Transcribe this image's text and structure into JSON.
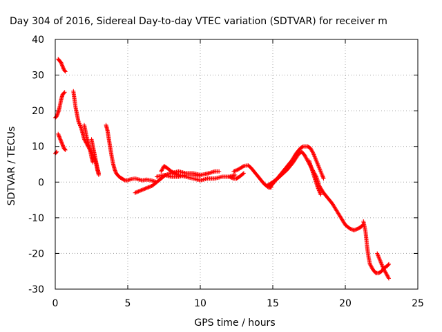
{
  "chart_data": {
    "type": "scatter",
    "title": "Day 304 of 2016, Sidereal Day-to-day VTEC variation (SDTVAR) for receiver m",
    "xlabel": "GPS time / hours",
    "ylabel": "SDTVAR / TECUs",
    "xlim": [
      0,
      25
    ],
    "ylim": [
      -30,
      40
    ],
    "xticks": [
      0,
      5,
      10,
      15,
      20,
      25
    ],
    "yticks": [
      -30,
      -20,
      -10,
      0,
      10,
      20,
      30,
      40
    ],
    "xtick_labels": [
      "0",
      "5",
      "10",
      "15",
      "20",
      "25"
    ],
    "ytick_labels": [
      "-30",
      "-20",
      "-10",
      "0",
      "10",
      "20",
      "30",
      "40"
    ],
    "grid": true,
    "marker": "+",
    "series": [
      {
        "color": "#ff0000",
        "segments": [
          [
            [
              0.0,
              18.0
            ],
            [
              0.1,
              18.5
            ],
            [
              0.2,
              19.5
            ],
            [
              0.3,
              21.0
            ],
            [
              0.4,
              23.0
            ],
            [
              0.5,
              24.5
            ],
            [
              0.6,
              25.0
            ],
            [
              0.65,
              25.2
            ]
          ],
          [
            [
              0.0,
              8.0
            ],
            [
              0.1,
              8.5
            ]
          ],
          [
            [
              0.2,
              13.5
            ],
            [
              0.3,
              12.5
            ],
            [
              0.4,
              11.5
            ],
            [
              0.5,
              10.5
            ],
            [
              0.6,
              9.5
            ],
            [
              0.7,
              9.0
            ]
          ],
          [
            [
              0.2,
              34.5
            ],
            [
              0.3,
              34.0
            ],
            [
              0.4,
              33.5
            ],
            [
              0.5,
              32.5
            ],
            [
              0.6,
              31.5
            ],
            [
              0.7,
              31.0
            ]
          ],
          [
            [
              1.25,
              25.5
            ],
            [
              1.3,
              24.0
            ],
            [
              1.4,
              21.0
            ],
            [
              1.5,
              19.0
            ],
            [
              1.6,
              17.0
            ],
            [
              1.8,
              15.0
            ],
            [
              2.0,
              12.0
            ],
            [
              2.2,
              10.5
            ],
            [
              2.4,
              9.0
            ],
            [
              2.6,
              7.5
            ],
            [
              2.8,
              5.5
            ],
            [
              2.9,
              3.5
            ],
            [
              3.0,
              2.0
            ]
          ],
          [
            [
              2.0,
              16.0
            ],
            [
              2.1,
              14.0
            ],
            [
              2.2,
              12.0
            ],
            [
              2.3,
              10.5
            ],
            [
              2.4,
              9.0
            ],
            [
              2.5,
              7.0
            ],
            [
              2.6,
              5.5
            ]
          ],
          [
            [
              2.5,
              12.0
            ],
            [
              2.6,
              10.0
            ],
            [
              2.7,
              8.0
            ],
            [
              2.8,
              6.0
            ],
            [
              2.9,
              4.0
            ],
            [
              3.0,
              2.5
            ]
          ],
          [
            [
              3.5,
              16.0
            ],
            [
              3.6,
              14.5
            ],
            [
              3.7,
              12.0
            ],
            [
              3.8,
              9.5
            ],
            [
              3.9,
              7.0
            ],
            [
              4.0,
              5.0
            ],
            [
              4.1,
              3.5
            ],
            [
              4.2,
              2.5
            ],
            [
              4.4,
              1.5
            ],
            [
              4.6,
              1.0
            ],
            [
              4.8,
              0.5
            ],
            [
              5.0,
              0.5
            ],
            [
              5.2,
              0.8
            ],
            [
              5.5,
              1.0
            ],
            [
              6.0,
              0.5
            ],
            [
              6.3,
              0.7
            ],
            [
              6.6,
              0.5
            ],
            [
              7.0,
              0.0
            ]
          ],
          [
            [
              5.5,
              -3.0
            ],
            [
              5.8,
              -2.5
            ],
            [
              6.1,
              -2.0
            ],
            [
              6.4,
              -1.5
            ],
            [
              6.7,
              -1.0
            ],
            [
              7.0,
              0.0
            ],
            [
              7.3,
              1.0
            ],
            [
              7.6,
              2.0
            ],
            [
              8.0,
              2.5
            ],
            [
              8.5,
              3.0
            ],
            [
              9.0,
              2.5
            ],
            [
              9.5,
              2.5
            ],
            [
              10.0,
              2.0
            ],
            [
              10.3,
              2.2
            ],
            [
              10.6,
              2.5
            ],
            [
              11.0,
              3.0
            ],
            [
              11.3,
              3.0
            ]
          ],
          [
            [
              7.3,
              3.0
            ],
            [
              7.5,
              4.5
            ],
            [
              7.7,
              4.0
            ],
            [
              8.0,
              3.0
            ],
            [
              8.5,
              2.0
            ],
            [
              9.0,
              1.5
            ],
            [
              9.5,
              1.0
            ],
            [
              10.0,
              0.5
            ],
            [
              10.5,
              1.0
            ],
            [
              11.0,
              1.0
            ],
            [
              11.5,
              1.5
            ],
            [
              12.0,
              1.5
            ],
            [
              12.4,
              2.0
            ]
          ],
          [
            [
              7.0,
              1.5
            ],
            [
              7.5,
              2.0
            ],
            [
              8.0,
              1.5
            ],
            [
              8.5,
              1.5
            ],
            [
              9.0,
              2.0
            ],
            [
              9.5,
              2.0
            ],
            [
              10.0,
              1.8
            ]
          ],
          [
            [
              12.3,
              3.0
            ],
            [
              12.6,
              3.5
            ],
            [
              13.0,
              4.5
            ],
            [
              13.3,
              4.7
            ],
            [
              13.5,
              4.0
            ],
            [
              13.8,
              2.5
            ],
            [
              14.1,
              1.0
            ],
            [
              14.4,
              -0.5
            ],
            [
              14.7,
              -1.5
            ],
            [
              14.9,
              -1.5
            ]
          ],
          [
            [
              12.0,
              1.5
            ],
            [
              12.3,
              1.0
            ],
            [
              12.5,
              1.0
            ],
            [
              12.7,
              1.5
            ],
            [
              13.0,
              2.5
            ]
          ],
          [
            [
              14.6,
              -1.0
            ],
            [
              15.0,
              0.0
            ],
            [
              15.3,
              1.0
            ],
            [
              15.6,
              2.5
            ],
            [
              16.0,
              4.5
            ],
            [
              16.3,
              6.0
            ],
            [
              16.6,
              8.0
            ],
            [
              16.9,
              9.5
            ],
            [
              17.1,
              10.0
            ],
            [
              17.4,
              10.0
            ],
            [
              17.6,
              9.5
            ],
            [
              17.8,
              8.0
            ],
            [
              18.0,
              6.0
            ],
            [
              18.2,
              4.0
            ],
            [
              18.4,
              2.0
            ],
            [
              18.5,
              1.0
            ]
          ],
          [
            [
              14.8,
              -1.5
            ],
            [
              15.2,
              0.5
            ],
            [
              15.6,
              2.0
            ],
            [
              16.0,
              3.5
            ],
            [
              16.4,
              5.5
            ],
            [
              16.8,
              8.0
            ],
            [
              17.0,
              8.5
            ],
            [
              17.2,
              7.5
            ],
            [
              17.4,
              6.0
            ],
            [
              17.6,
              4.5
            ],
            [
              17.8,
              3.0
            ],
            [
              18.0,
              1.5
            ],
            [
              18.2,
              -1.0
            ],
            [
              18.5,
              -3.0
            ],
            [
              18.8,
              -4.5
            ],
            [
              19.1,
              -6.0
            ],
            [
              19.4,
              -8.0
            ],
            [
              19.7,
              -10.0
            ],
            [
              20.0,
              -12.0
            ],
            [
              20.3,
              -13.0
            ],
            [
              20.6,
              -13.5
            ],
            [
              20.9,
              -13.0
            ],
            [
              21.1,
              -12.5
            ],
            [
              21.2,
              -12.0
            ]
          ],
          [
            [
              17.5,
              6.0
            ],
            [
              17.7,
              3.5
            ],
            [
              17.9,
              1.0
            ],
            [
              18.1,
              -1.5
            ],
            [
              18.3,
              -3.5
            ]
          ],
          [
            [
              21.25,
              -11.0
            ],
            [
              21.4,
              -14.0
            ],
            [
              21.5,
              -18.0
            ],
            [
              21.6,
              -21.0
            ],
            [
              21.7,
              -23.0
            ],
            [
              21.9,
              -24.5
            ],
            [
              22.1,
              -25.5
            ],
            [
              22.3,
              -25.5
            ],
            [
              22.5,
              -25.0
            ],
            [
              22.7,
              -24.0
            ],
            [
              22.9,
              -23.5
            ],
            [
              23.0,
              -23.0
            ]
          ],
          [
            [
              22.2,
              -20.0
            ],
            [
              22.4,
              -22.0
            ],
            [
              22.6,
              -24.0
            ],
            [
              22.8,
              -25.5
            ],
            [
              23.0,
              -27.0
            ]
          ]
        ]
      }
    ]
  }
}
